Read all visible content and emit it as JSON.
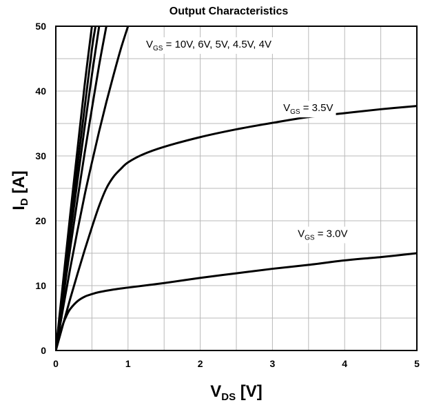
{
  "chart_data": {
    "type": "line",
    "title": "Output Characteristics",
    "xlabel": {
      "main": "V",
      "sub": "DS",
      "unit": " [V]"
    },
    "ylabel": {
      "main": "I",
      "sub": "D",
      "unit": " [A]"
    },
    "xlim": [
      0,
      5
    ],
    "ylim": [
      0,
      50
    ],
    "xticks": [
      "0",
      "1",
      "2",
      "3",
      "4",
      "5"
    ],
    "yticks": [
      "0",
      "10",
      "20",
      "30",
      "40",
      "50"
    ],
    "grid": true,
    "series": [
      {
        "x": [
          0,
          0.1,
          0.2,
          0.3,
          0.4,
          0.5
        ],
        "y": [
          0,
          10.5,
          21,
          31,
          41,
          50
        ]
      },
      {
        "x": [
          0,
          0.1,
          0.2,
          0.3,
          0.4,
          0.5,
          0.55
        ],
        "y": [
          0,
          9.7,
          19.2,
          28.5,
          37.5,
          46.5,
          50
        ]
      },
      {
        "x": [
          0,
          0.1,
          0.2,
          0.3,
          0.4,
          0.5,
          0.6
        ],
        "y": [
          0,
          9,
          17.8,
          26.2,
          34.5,
          42.5,
          50
        ]
      },
      {
        "x": [
          0,
          0.1,
          0.2,
          0.3,
          0.4,
          0.5,
          0.6,
          0.7
        ],
        "y": [
          0,
          8,
          15.8,
          23.3,
          30.5,
          37.3,
          44,
          50
        ]
      },
      {
        "x": [
          0,
          0.1,
          0.2,
          0.3,
          0.4,
          0.5,
          0.6,
          0.7,
          0.8,
          0.9,
          1.0
        ],
        "y": [
          0,
          6.5,
          12.7,
          18.5,
          24,
          29,
          33.8,
          38.3,
          42.5,
          46.5,
          50
        ]
      },
      {
        "x": [
          0,
          0.1,
          0.2,
          0.3,
          0.4,
          0.5,
          0.6,
          0.7,
          0.8,
          0.9,
          1.0,
          1.2,
          1.5,
          2.0,
          2.5,
          3.0,
          3.5,
          4.0,
          4.5,
          5.0
        ],
        "y": [
          0,
          4,
          8,
          11.8,
          15.5,
          19,
          22.3,
          25,
          26.8,
          28,
          29,
          30.2,
          31.4,
          32.9,
          34.1,
          35.1,
          36,
          36.6,
          37.2,
          37.7
        ]
      },
      {
        "x": [
          0,
          0.05,
          0.1,
          0.15,
          0.2,
          0.3,
          0.4,
          0.5,
          0.6,
          0.8,
          1.0,
          1.5,
          2.0,
          2.5,
          3.0,
          3.5,
          4.0,
          4.5,
          5.0
        ],
        "y": [
          0,
          2.3,
          4.1,
          5.4,
          6.4,
          7.6,
          8.3,
          8.7,
          9.0,
          9.4,
          9.7,
          10.4,
          11.2,
          11.9,
          12.6,
          13.2,
          13.9,
          14.4,
          15.0
        ]
      }
    ],
    "annotations": [
      {
        "main": "V",
        "sub": "GS",
        "text": " = 10V, 6V, 5V, 4.5V, 4V",
        "x": 1.25,
        "y": 46.7
      },
      {
        "main": "V",
        "sub": "GS",
        "text": " = 3.5V",
        "x": 3.15,
        "y": 36.9
      },
      {
        "main": "V",
        "sub": "GS",
        "text": " = 3.0V",
        "x": 3.35,
        "y": 17.5
      }
    ]
  }
}
